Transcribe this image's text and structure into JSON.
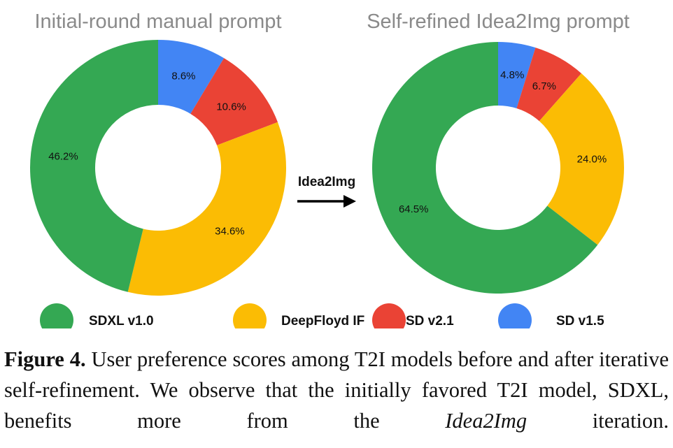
{
  "chart_data": [
    {
      "type": "pie",
      "variant": "donut",
      "title": "Initial-round manual prompt",
      "categories": [
        "SD v1.5",
        "SD v2.1",
        "DeepFloyd IF",
        "SDXL v1.0"
      ],
      "values": [
        8.6,
        10.6,
        34.6,
        46.2
      ],
      "labels": [
        "8.6%",
        "10.6%",
        "34.6%",
        "46.2%"
      ]
    },
    {
      "type": "pie",
      "variant": "donut",
      "title": "Self-refined Idea2Img prompt",
      "categories": [
        "SD v1.5",
        "SD v2.1",
        "DeepFloyd IF",
        "SDXL v1.0"
      ],
      "values": [
        4.8,
        6.7,
        24.0,
        64.5
      ],
      "labels": [
        "4.8%",
        "6.7%",
        "24.0%",
        "64.5%"
      ]
    }
  ],
  "colors": {
    "SD v1.5": "#4285f4",
    "SD v2.1": "#ea4335",
    "DeepFloyd IF": "#fbbc04",
    "SDXL v1.0": "#34a853"
  },
  "arrow": {
    "label": "Idea2Img"
  },
  "legend": [
    {
      "name": "SDXL v1.0",
      "color": "#34a853"
    },
    {
      "name": "DeepFloyd IF",
      "color": "#fbbc04"
    },
    {
      "name": "SD v2.1",
      "color": "#ea4335"
    },
    {
      "name": "SD v1.5",
      "color": "#4285f4"
    }
  ],
  "caption": {
    "label": "Figure 4.",
    "text_part1": "User preference scores among T2I models before and after iterative self-refinement. We observe that the initially favored T2I model, SDXL, benefits more from the",
    "emphasis": "Idea2Img",
    "text_part2": "iteration."
  }
}
